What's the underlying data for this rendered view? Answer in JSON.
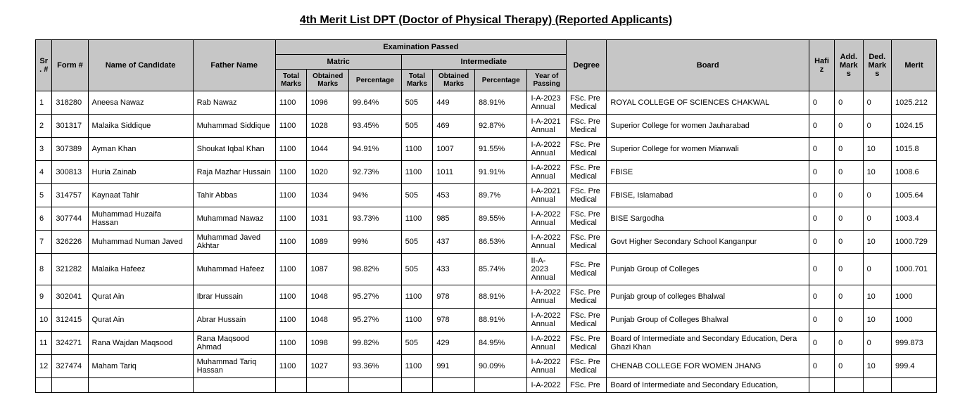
{
  "title": "4th Merit List DPT (Doctor of Physical Therapy) (Reported Applicants)",
  "headers": {
    "sr": "Sr. #",
    "form": "Form #",
    "name": "Name of Candidate",
    "father": "Father Name",
    "exam": "Examination Passed",
    "matric": "Matric",
    "inter": "Intermediate",
    "tm": "Total Marks",
    "om": "Obtained Marks",
    "pct": "Percentage",
    "yop": "Year of Passing",
    "degree": "Degree",
    "board": "Board",
    "hafiz": "Hafiz",
    "add": "Add. Marks",
    "ded": "Ded. Marks",
    "merit": "Merit"
  },
  "rows": [
    {
      "sr": "1",
      "form": "318280",
      "name": "Aneesa Nawaz",
      "father": "Rab Nawaz",
      "mtm": "1100",
      "mom": "1096",
      "mpct": "99.64%",
      "itm": "505",
      "iom": "449",
      "ipct": "88.91%",
      "yop": "I-A-2023 Annual",
      "deg": "FSc. Pre Medical",
      "board": "ROYAL COLLEGE OF SCIENCES CHAKWAL",
      "hafiz": "0",
      "add": "0",
      "ded": "0",
      "merit": "1025.212"
    },
    {
      "sr": "2",
      "form": "301317",
      "name": "Malaika Siddique",
      "father": "Muhammad Siddique",
      "mtm": "1100",
      "mom": "1028",
      "mpct": "93.45%",
      "itm": "505",
      "iom": "469",
      "ipct": "92.87%",
      "yop": "I-A-2021 Annual",
      "deg": "FSc. Pre Medical",
      "board": "Superior College for women Jauharabad",
      "hafiz": "0",
      "add": "0",
      "ded": "0",
      "merit": "1024.15"
    },
    {
      "sr": "3",
      "form": "307389",
      "name": "Ayman Khan",
      "father": "Shoukat Iqbal Khan",
      "mtm": "1100",
      "mom": "1044",
      "mpct": "94.91%",
      "itm": "1100",
      "iom": "1007",
      "ipct": "91.55%",
      "yop": "I-A-2022 Annual",
      "deg": "FSc. Pre Medical",
      "board": "Superior College for women Mianwali",
      "hafiz": "0",
      "add": "0",
      "ded": "10",
      "merit": "1015.8"
    },
    {
      "sr": "4",
      "form": "300813",
      "name": "Huria Zainab",
      "father": "Raja Mazhar Hussain",
      "mtm": "1100",
      "mom": "1020",
      "mpct": "92.73%",
      "itm": "1100",
      "iom": "1011",
      "ipct": "91.91%",
      "yop": "I-A-2022 Annual",
      "deg": "FSc. Pre Medical",
      "board": "FBISE",
      "hafiz": "0",
      "add": "0",
      "ded": "10",
      "merit": "1008.6"
    },
    {
      "sr": "5",
      "form": "314757",
      "name": "Kaynaat Tahir",
      "father": "Tahir Abbas",
      "mtm": "1100",
      "mom": "1034",
      "mpct": "94%",
      "itm": "505",
      "iom": "453",
      "ipct": "89.7%",
      "yop": "I-A-2021 Annual",
      "deg": "FSc. Pre Medical",
      "board": "FBISE, Islamabad",
      "hafiz": "0",
      "add": "0",
      "ded": "0",
      "merit": "1005.64"
    },
    {
      "sr": "6",
      "form": "307744",
      "name": "Muhammad Huzaifa Hassan",
      "father": "Muhammad Nawaz",
      "mtm": "1100",
      "mom": "1031",
      "mpct": "93.73%",
      "itm": "1100",
      "iom": "985",
      "ipct": "89.55%",
      "yop": "I-A-2022 Annual",
      "deg": "FSc. Pre Medical",
      "board": "BISE Sargodha",
      "hafiz": "0",
      "add": "0",
      "ded": "0",
      "merit": "1003.4"
    },
    {
      "sr": "7",
      "form": "326226",
      "name": "Muhammad Numan Javed",
      "father": "Muhammad Javed Akhtar",
      "mtm": "1100",
      "mom": "1089",
      "mpct": "99%",
      "itm": "505",
      "iom": "437",
      "ipct": "86.53%",
      "yop": "I-A-2022 Annual",
      "deg": "FSc. Pre Medical",
      "board": "Govt Higher Secondary School Kanganpur",
      "hafiz": "0",
      "add": "0",
      "ded": "10",
      "merit": "1000.729"
    },
    {
      "sr": "8",
      "form": "321282",
      "name": "Malaika Hafeez",
      "father": "Muhammad Hafeez",
      "mtm": "1100",
      "mom": "1087",
      "mpct": "98.82%",
      "itm": "505",
      "iom": "433",
      "ipct": "85.74%",
      "yop": "II-A-2023 Annual",
      "deg": "FSc. Pre Medical",
      "board": "Punjab Group of Colleges",
      "hafiz": "0",
      "add": "0",
      "ded": "0",
      "merit": "1000.701"
    },
    {
      "sr": "9",
      "form": "302041",
      "name": "Qurat Ain",
      "father": "Ibrar Hussain",
      "mtm": "1100",
      "mom": "1048",
      "mpct": "95.27%",
      "itm": "1100",
      "iom": "978",
      "ipct": "88.91%",
      "yop": "I-A-2022 Annual",
      "deg": "FSc. Pre Medical",
      "board": "Punjab group of colleges Bhalwal",
      "hafiz": "0",
      "add": "0",
      "ded": "10",
      "merit": "1000"
    },
    {
      "sr": "10",
      "form": "312415",
      "name": "Qurat Ain",
      "father": "Abrar Hussain",
      "mtm": "1100",
      "mom": "1048",
      "mpct": "95.27%",
      "itm": "1100",
      "iom": "978",
      "ipct": "88.91%",
      "yop": "I-A-2022 Annual",
      "deg": "FSc. Pre Medical",
      "board": "Punjab Group of Colleges Bhalwal",
      "hafiz": "0",
      "add": "0",
      "ded": "10",
      "merit": "1000"
    },
    {
      "sr": "11",
      "form": "324271",
      "name": "Rana Wajdan Maqsood",
      "father": "Rana Maqsood Ahmad",
      "mtm": "1100",
      "mom": "1098",
      "mpct": "99.82%",
      "itm": "505",
      "iom": "429",
      "ipct": "84.95%",
      "yop": "I-A-2022 Annual",
      "deg": "FSc. Pre Medical",
      "board": "Board of Intermediate and Secondary Education, Dera Ghazi Khan",
      "hafiz": "0",
      "add": "0",
      "ded": "0",
      "merit": "999.873"
    },
    {
      "sr": "12",
      "form": "327474",
      "name": "Maham Tariq",
      "father": "Muhammad Tariq Hassan",
      "mtm": "1100",
      "mom": "1027",
      "mpct": "93.36%",
      "itm": "1100",
      "iom": "991",
      "ipct": "90.09%",
      "yop": "I-A-2022 Annual",
      "deg": "FSc. Pre Medical",
      "board": "CHENAB COLLEGE FOR WOMEN JHANG",
      "hafiz": "0",
      "add": "0",
      "ded": "10",
      "merit": "999.4"
    },
    {
      "sr": "",
      "form": "",
      "name": "",
      "father": "",
      "mtm": "",
      "mom": "",
      "mpct": "",
      "itm": "",
      "iom": "",
      "ipct": "",
      "yop": "I-A-2022",
      "deg": "FSc. Pre",
      "board": "Board of Intermediate and Secondary Education,",
      "hafiz": "",
      "add": "",
      "ded": "",
      "merit": ""
    }
  ]
}
